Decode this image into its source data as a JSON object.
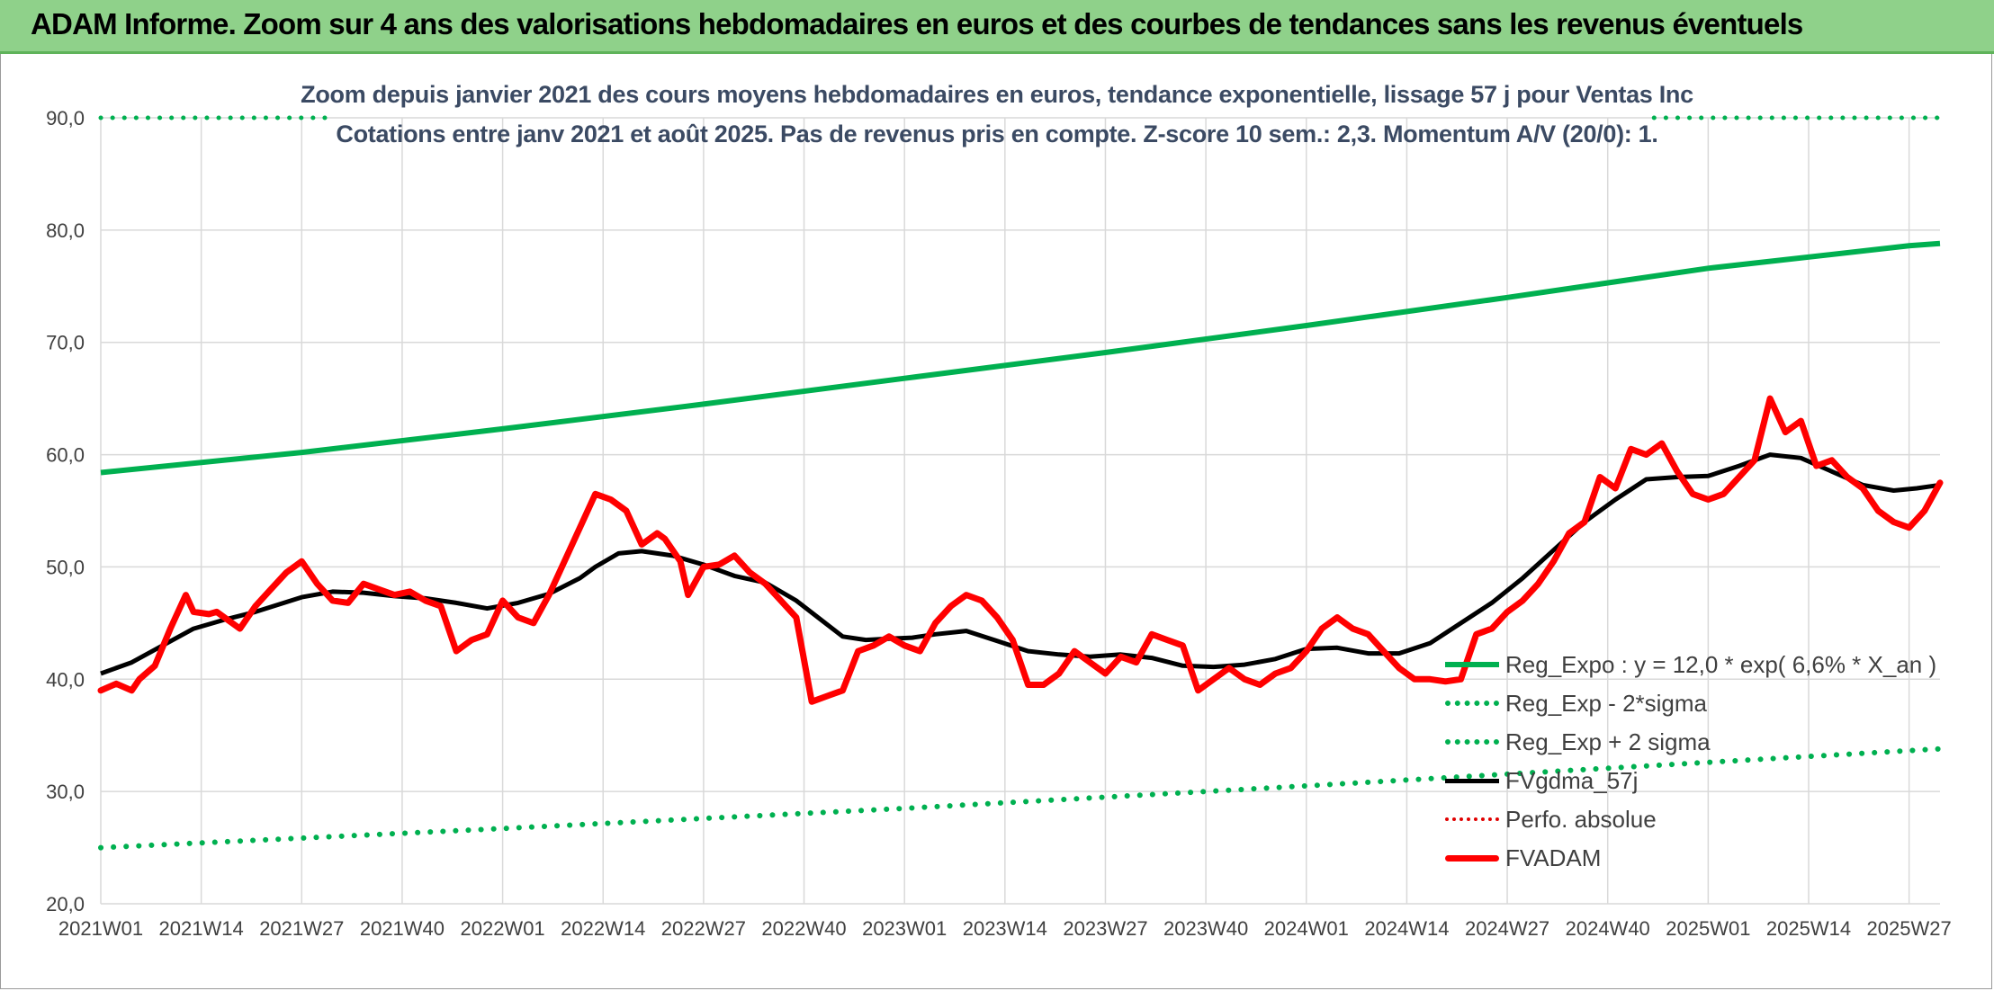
{
  "header": {
    "title": "ADAM Informe. Zoom sur 4 ans des valorisations hebdomadaires en euros et des courbes de tendances sans les revenus éventuels"
  },
  "subtitle": {
    "line1": "Zoom depuis janvier 2021 des cours moyens hebdomadaires en euros, tendance exponentielle, lissage 57 j pour Ventas Inc",
    "line2": "Cotations entre janv 2021 et août 2025. Pas de revenus pris en compte. Z-score 10 sem.: 2,3. Momentum A/V (20/0): 1."
  },
  "colors": {
    "green": "#00b050",
    "black": "#000000",
    "red": "#ff0000",
    "red_dotted": "#e00000",
    "grid": "#d9d9d9",
    "axis_text": "#404040",
    "banner": "#8fd18a"
  },
  "legend": {
    "placement": "bottom-right",
    "items": [
      {
        "label": "Reg_Expo : y = 12,0 * exp( 6,6% *  X_an )",
        "style": "solid-green"
      },
      {
        "label": "Reg_Exp - 2*sigma",
        "style": "dot-green"
      },
      {
        "label": "Reg_Exp + 2 sigma",
        "style": "dot-green"
      },
      {
        "label": "FVgdma_57j",
        "style": "solid-black"
      },
      {
        "label": "Perfo. absolue",
        "style": "dot-red"
      },
      {
        "label": "FVADAM",
        "style": "solid-red"
      }
    ]
  },
  "chart_data": {
    "type": "line",
    "ylim": [
      20,
      90
    ],
    "yticks": [
      "20,0",
      "30,0",
      "40,0",
      "50,0",
      "60,0",
      "70,0",
      "80,0",
      "90,0"
    ],
    "ytick_values": [
      20,
      30,
      40,
      50,
      60,
      70,
      80,
      90
    ],
    "xlim_weeks": [
      0,
      238
    ],
    "xtick_labels": [
      "2021W01",
      "2021W14",
      "2021W27",
      "2021W40",
      "2022W01",
      "2022W14",
      "2022W27",
      "2022W40",
      "2023W01",
      "2023W14",
      "2023W27",
      "2023W40",
      "2024W01",
      "2024W14",
      "2024W27",
      "2024W40",
      "2025W01",
      "2025W14",
      "2025W27"
    ],
    "grid": true,
    "series": [
      {
        "name": "Reg_Expo : y = 12,0 * exp( 6,6% *  X_an )",
        "style": "solid-green",
        "x": [
          0,
          26,
          52,
          78,
          104,
          130,
          156,
          182,
          208,
          234,
          238
        ],
        "y": [
          58.4,
          60.2,
          62.3,
          64.5,
          66.8,
          69.1,
          71.5,
          74.0,
          76.6,
          78.6,
          78.8
        ]
      },
      {
        "name": "Reg_Exp - 2*sigma",
        "style": "dot-green",
        "x": [
          0,
          52,
          104,
          156,
          208,
          238
        ],
        "y": [
          25.0,
          26.7,
          28.5,
          30.5,
          32.6,
          33.8
        ]
      },
      {
        "name": "Reg_Exp + 2 sigma",
        "style": "dot-green-top",
        "segments": [
          [
            0,
            29
          ],
          [
            201,
            238
          ]
        ],
        "y": [
          90.0,
          90.0
        ]
      },
      {
        "name": "FVgdma_57j",
        "style": "solid-black",
        "x": [
          0,
          4,
          8,
          12,
          16,
          20,
          26,
          30,
          34,
          38,
          42,
          46,
          50,
          54,
          58,
          62,
          64,
          67,
          70,
          74,
          78,
          82,
          86,
          90,
          93,
          96,
          99,
          102,
          105,
          108,
          112,
          116,
          120,
          124,
          128,
          132,
          136,
          140,
          144,
          148,
          152,
          156,
          160,
          164,
          168,
          172,
          176,
          180,
          184,
          188,
          192,
          196,
          200,
          204,
          208,
          212,
          216,
          220,
          224,
          228,
          232,
          235,
          238
        ],
        "y": [
          40.5,
          41.5,
          43.0,
          44.5,
          45.3,
          46.0,
          47.3,
          47.8,
          47.7,
          47.4,
          47.2,
          46.8,
          46.3,
          46.8,
          47.6,
          49.0,
          50.0,
          51.2,
          51.4,
          51.0,
          50.2,
          49.2,
          48.6,
          47.0,
          45.4,
          43.8,
          43.5,
          43.6,
          43.7,
          44.0,
          44.3,
          43.4,
          42.5,
          42.2,
          42.0,
          42.2,
          41.9,
          41.2,
          41.1,
          41.3,
          41.8,
          42.7,
          42.8,
          42.3,
          42.3,
          43.2,
          45.0,
          46.8,
          49.0,
          51.5,
          54.0,
          56.0,
          57.8,
          58.0,
          58.1,
          59.0,
          60.0,
          59.7,
          58.5,
          57.3,
          56.8,
          57.0,
          57.3
        ]
      },
      {
        "name": "FVADAM",
        "style": "solid-red",
        "x": [
          0,
          2,
          4,
          5,
          7,
          9,
          11,
          12,
          14,
          15,
          16,
          18,
          20,
          22,
          24,
          26,
          28,
          30,
          32,
          34,
          36,
          38,
          40,
          42,
          44,
          46,
          48,
          50,
          52,
          54,
          56,
          58,
          60,
          62,
          64,
          66,
          68,
          70,
          72,
          73,
          75,
          76,
          78,
          80,
          82,
          84,
          86,
          88,
          90,
          92,
          94,
          96,
          98,
          100,
          102,
          104,
          106,
          108,
          110,
          112,
          114,
          116,
          118,
          120,
          122,
          124,
          126,
          128,
          130,
          132,
          134,
          136,
          138,
          140,
          142,
          144,
          146,
          148,
          150,
          152,
          154,
          156,
          158,
          160,
          162,
          164,
          166,
          168,
          170,
          172,
          174,
          176,
          178,
          180,
          182,
          184,
          186,
          188,
          190,
          192,
          194,
          196,
          198,
          200,
          202,
          204,
          206,
          208,
          210,
          212,
          214,
          216,
          218,
          220,
          222,
          224,
          226,
          228,
          230,
          232,
          234,
          236,
          238
        ],
        "y": [
          39.0,
          39.6,
          39.0,
          40.0,
          41.2,
          44.5,
          47.5,
          46.0,
          45.8,
          46.0,
          45.5,
          44.5,
          46.5,
          48.0,
          49.5,
          50.5,
          48.5,
          47.0,
          46.8,
          48.5,
          48.0,
          47.5,
          47.8,
          47.0,
          46.5,
          42.5,
          43.5,
          44.0,
          47.0,
          45.5,
          45.0,
          47.5,
          50.5,
          53.5,
          56.5,
          56.0,
          55.0,
          52.0,
          53.0,
          52.5,
          50.5,
          47.5,
          50.0,
          50.2,
          51.0,
          49.5,
          48.5,
          47.0,
          45.5,
          38.0,
          38.5,
          39.0,
          42.5,
          43.0,
          43.8,
          43.0,
          42.5,
          45.0,
          46.5,
          47.5,
          47.0,
          45.5,
          43.5,
          39.5,
          39.5,
          40.5,
          42.5,
          41.5,
          40.5,
          42.0,
          41.5,
          44.0,
          43.5,
          43.0,
          39.0,
          40.0,
          41.0,
          40.0,
          39.5,
          40.5,
          41.0,
          42.5,
          44.5,
          45.5,
          44.5,
          44.0,
          42.5,
          41.0,
          40.0,
          40.0,
          39.8,
          40.0,
          44.0,
          44.5,
          46.0,
          47.0,
          48.5,
          50.5,
          53.0,
          54.0,
          58.0,
          57.0,
          60.5,
          60.0,
          61.0,
          58.5,
          56.5,
          56.0,
          56.5,
          58.0,
          59.5,
          65.0,
          62.0,
          63.0,
          59.0,
          59.5,
          58.0,
          57.0,
          55.0,
          54.0,
          53.5,
          55.0,
          57.5
        ]
      }
    ]
  }
}
